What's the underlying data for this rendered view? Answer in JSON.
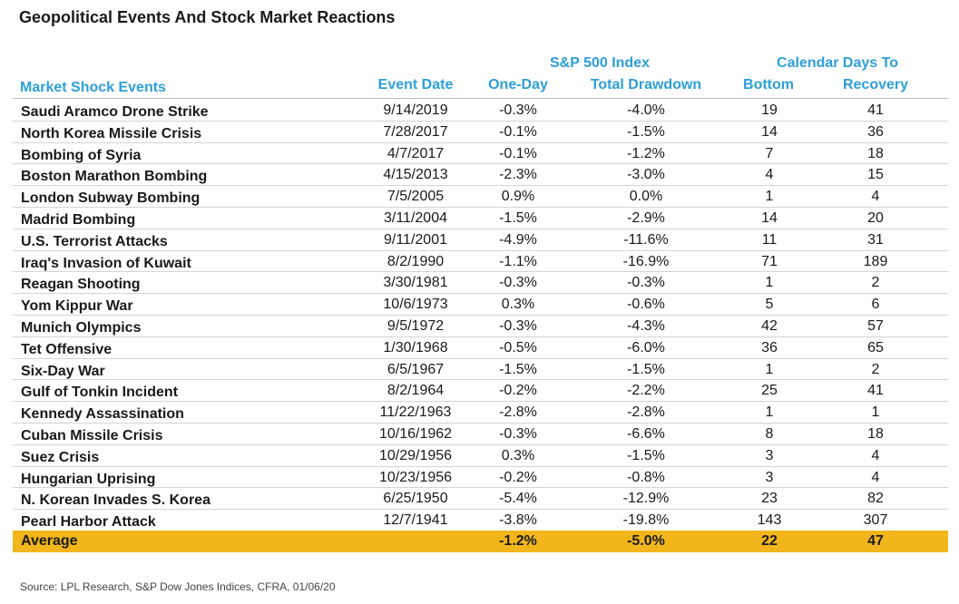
{
  "title": "Geopolitical Events And Stock Market Reactions",
  "headers": {
    "group_sp500": "S&P 500 Index",
    "group_days": "Calendar Days To",
    "events": "Market Shock Events",
    "event_date": "Event Date",
    "one_day": "One-Day",
    "total_drawdown": "Total Drawdown",
    "bottom": "Bottom",
    "recovery": "Recovery"
  },
  "chart_data": {
    "type": "table",
    "title": "Geopolitical Events And Stock Market Reactions",
    "columns": [
      "Market Shock Events",
      "Event Date",
      "One-Day",
      "Total Drawdown",
      "Bottom",
      "Recovery"
    ],
    "rows": [
      {
        "event": "Saudi Aramco Drone Strike",
        "date": "9/14/2019",
        "one_day": "-0.3%",
        "drawdown": "-4.0%",
        "bottom": "19",
        "recovery": "41"
      },
      {
        "event": "North Korea Missile Crisis",
        "date": "7/28/2017",
        "one_day": "-0.1%",
        "drawdown": "-1.5%",
        "bottom": "14",
        "recovery": "36"
      },
      {
        "event": "Bombing of Syria",
        "date": "4/7/2017",
        "one_day": "-0.1%",
        "drawdown": "-1.2%",
        "bottom": "7",
        "recovery": "18"
      },
      {
        "event": "Boston Marathon Bombing",
        "date": "4/15/2013",
        "one_day": "-2.3%",
        "drawdown": "-3.0%",
        "bottom": "4",
        "recovery": "15"
      },
      {
        "event": "London Subway Bombing",
        "date": "7/5/2005",
        "one_day": "0.9%",
        "drawdown": "0.0%",
        "bottom": "1",
        "recovery": "4"
      },
      {
        "event": "Madrid Bombing",
        "date": "3/11/2004",
        "one_day": "-1.5%",
        "drawdown": "-2.9%",
        "bottom": "14",
        "recovery": "20"
      },
      {
        "event": "U.S. Terrorist Attacks",
        "date": "9/11/2001",
        "one_day": "-4.9%",
        "drawdown": "-11.6%",
        "bottom": "11",
        "recovery": "31"
      },
      {
        "event": "Iraq's Invasion of Kuwait",
        "date": "8/2/1990",
        "one_day": "-1.1%",
        "drawdown": "-16.9%",
        "bottom": "71",
        "recovery": "189"
      },
      {
        "event": "Reagan Shooting",
        "date": "3/30/1981",
        "one_day": "-0.3%",
        "drawdown": "-0.3%",
        "bottom": "1",
        "recovery": "2"
      },
      {
        "event": "Yom Kippur War",
        "date": "10/6/1973",
        "one_day": "0.3%",
        "drawdown": "-0.6%",
        "bottom": "5",
        "recovery": "6"
      },
      {
        "event": "Munich Olympics",
        "date": "9/5/1972",
        "one_day": "-0.3%",
        "drawdown": "-4.3%",
        "bottom": "42",
        "recovery": "57"
      },
      {
        "event": "Tet Offensive",
        "date": "1/30/1968",
        "one_day": "-0.5%",
        "drawdown": "-6.0%",
        "bottom": "36",
        "recovery": "65"
      },
      {
        "event": "Six-Day War",
        "date": "6/5/1967",
        "one_day": "-1.5%",
        "drawdown": "-1.5%",
        "bottom": "1",
        "recovery": "2"
      },
      {
        "event": "Gulf of Tonkin Incident",
        "date": "8/2/1964",
        "one_day": "-0.2%",
        "drawdown": "-2.2%",
        "bottom": "25",
        "recovery": "41"
      },
      {
        "event": "Kennedy Assassination",
        "date": "11/22/1963",
        "one_day": "-2.8%",
        "drawdown": "-2.8%",
        "bottom": "1",
        "recovery": "1"
      },
      {
        "event": "Cuban Missile Crisis",
        "date": "10/16/1962",
        "one_day": "-0.3%",
        "drawdown": "-6.6%",
        "bottom": "8",
        "recovery": "18"
      },
      {
        "event": "Suez Crisis",
        "date": "10/29/1956",
        "one_day": "0.3%",
        "drawdown": "-1.5%",
        "bottom": "3",
        "recovery": "4"
      },
      {
        "event": "Hungarian Uprising",
        "date": "10/23/1956",
        "one_day": "-0.2%",
        "drawdown": "-0.8%",
        "bottom": "3",
        "recovery": "4"
      },
      {
        "event": "N. Korean Invades S. Korea",
        "date": "6/25/1950",
        "one_day": "-5.4%",
        "drawdown": "-12.9%",
        "bottom": "23",
        "recovery": "82"
      },
      {
        "event": "Pearl Harbor Attack",
        "date": "12/7/1941",
        "one_day": "-3.8%",
        "drawdown": "-19.8%",
        "bottom": "143",
        "recovery": "307"
      }
    ],
    "average": {
      "label": "Average",
      "one_day": "-1.2%",
      "drawdown": "-5.0%",
      "bottom": "22",
      "recovery": "47"
    }
  },
  "colors": {
    "header_blue": "#2e9fd8",
    "average_highlight": "#f2b61c"
  },
  "source": "Source: LPL Research, S&P Dow Jones Indices, CFRA, 01/06/20"
}
